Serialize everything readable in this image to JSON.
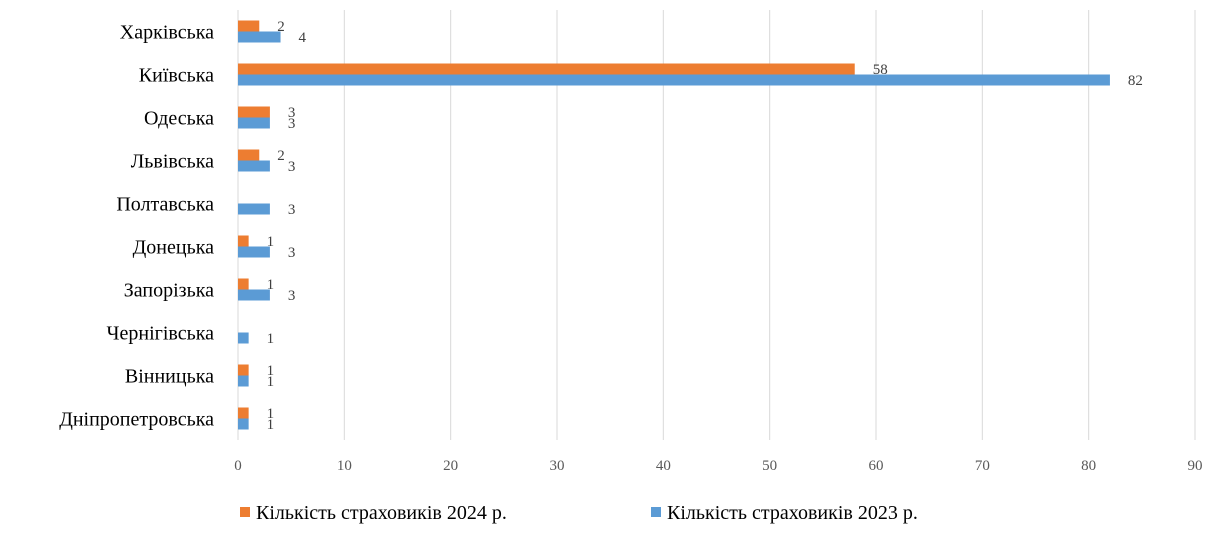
{
  "chart_data": {
    "type": "bar",
    "orientation": "horizontal",
    "categories": [
      "Харківська",
      "Київська",
      "Одеська",
      "Львівська",
      "Полтавська",
      "Донецька",
      "Запорізька",
      "Чернігівська",
      "Вінницька",
      "Дніпропетровська"
    ],
    "series": [
      {
        "name": "Кількість страховиків 2024 р.",
        "color": "#ed7d31",
        "values": [
          2,
          58,
          3,
          2,
          null,
          1,
          1,
          null,
          1,
          1
        ]
      },
      {
        "name": "Кількість страховиків 2023 р.",
        "color": "#5b9bd5",
        "values": [
          4,
          82,
          3,
          3,
          3,
          3,
          3,
          1,
          1,
          1
        ]
      }
    ],
    "xlim": [
      0,
      90
    ],
    "xticks": [
      0,
      10,
      20,
      30,
      40,
      50,
      60,
      70,
      80,
      90
    ],
    "grid": true,
    "legend": "bottom",
    "title": "",
    "xlabel": "",
    "ylabel": ""
  }
}
